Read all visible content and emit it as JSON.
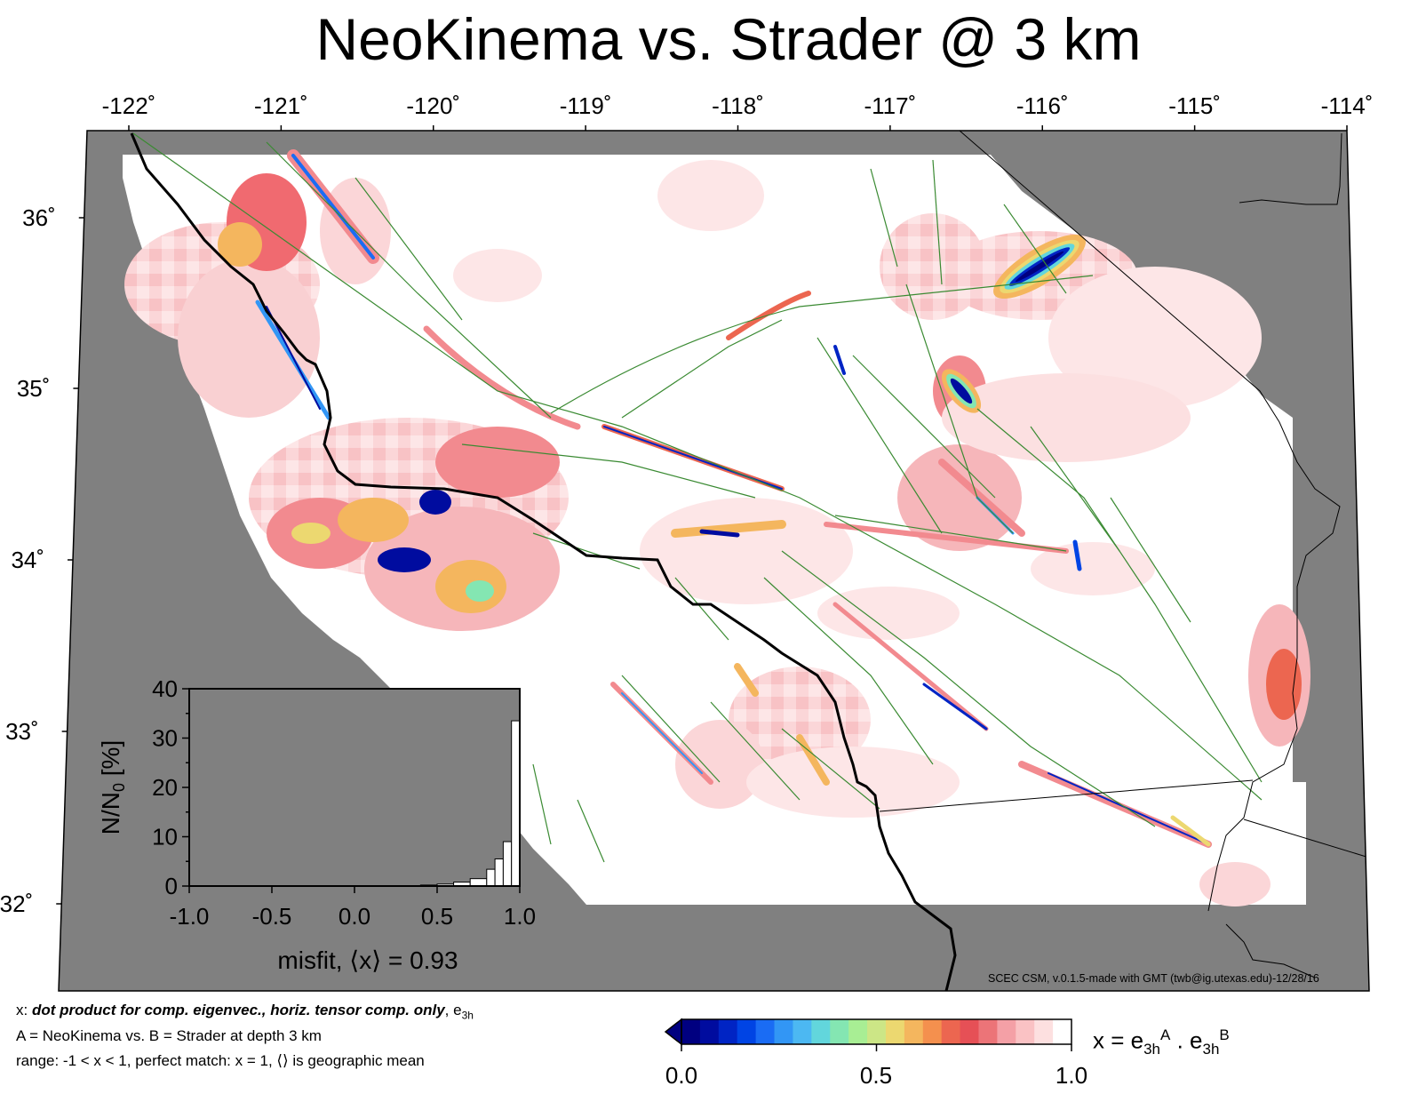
{
  "title": "NeoKinema vs. Strader @ 3 km",
  "map": {
    "lon_labels": [
      "-122˚",
      "-121˚",
      "-120˚",
      "-119˚",
      "-118˚",
      "-117˚",
      "-116˚",
      "-115˚",
      "-114˚"
    ],
    "lat_labels": [
      "36˚",
      "35˚",
      "34˚",
      "33˚",
      "32˚"
    ],
    "lon_range": [
      -122,
      -114
    ],
    "lat_range": [
      31.5,
      36.5
    ],
    "land_mask_color": "#808080",
    "fault_color": "#3a8a32",
    "coast_color": "#000000"
  },
  "histogram": {
    "xlabel": "misfit, ⟨x⟩ = 0.93",
    "ylabel": "N/N",
    "ylabel_sub": "0",
    "ylabel_suffix": " [%]",
    "x_ticks": [
      "-1.0",
      "-0.5",
      "0.0",
      "0.5",
      "1.0"
    ],
    "y_ticks": [
      "0",
      "10",
      "20",
      "30",
      "40"
    ],
    "xlim": [
      -1,
      1
    ],
    "ylim": [
      0,
      40
    ],
    "bins": [
      {
        "x0": 0.4,
        "x1": 0.5,
        "value": 0.2
      },
      {
        "x0": 0.5,
        "x1": 0.6,
        "value": 0.4
      },
      {
        "x0": 0.6,
        "x1": 0.7,
        "value": 0.8
      },
      {
        "x0": 0.7,
        "x1": 0.8,
        "value": 1.5
      },
      {
        "x0": 0.8,
        "x1": 0.85,
        "value": 3.4
      },
      {
        "x0": 0.85,
        "x1": 0.9,
        "value": 5.5
      },
      {
        "x0": 0.9,
        "x1": 0.95,
        "value": 9.0
      },
      {
        "x0": 0.95,
        "x1": 1.0,
        "value": 33.5
      }
    ]
  },
  "caption": {
    "line1_prefix": "x: ",
    "line1_bold": "dot product for comp. eigenvec., horiz. tensor comp. only",
    "line1_suffix": ", e",
    "line1_sub": "3h",
    "line2": "A = NeoKinema vs.  B = Strader at depth 3 km",
    "line3": "range: -1 < x < 1, perfect match: x = 1, ⟨⟩ is geographic mean"
  },
  "credit": "SCEC CSM, v.0.1.5-made with GMT (twb@ig.utexas.edu)-12/28/16",
  "colorbar": {
    "ticks": [
      "0.0",
      "0.5",
      "1.0"
    ],
    "range": [
      0,
      1
    ],
    "eq_x": "x = e",
    "eq_sub1": "3h",
    "eq_sup1": "A",
    "eq_mid": " . e",
    "eq_sub2": "3h",
    "eq_sup2": "B",
    "colors": [
      "#000080",
      "#000c9f",
      "#0024c4",
      "#0044e4",
      "#1a6cf4",
      "#3296f5",
      "#4cb8f2",
      "#62d6dc",
      "#84e6b2",
      "#a8ee94",
      "#cce686",
      "#ecd870",
      "#f4b65e",
      "#f4904e",
      "#ec6650",
      "#e65056",
      "#ec7478",
      "#f4a0a6",
      "#fac2c4",
      "#fde0e0",
      "#ffffff"
    ]
  }
}
